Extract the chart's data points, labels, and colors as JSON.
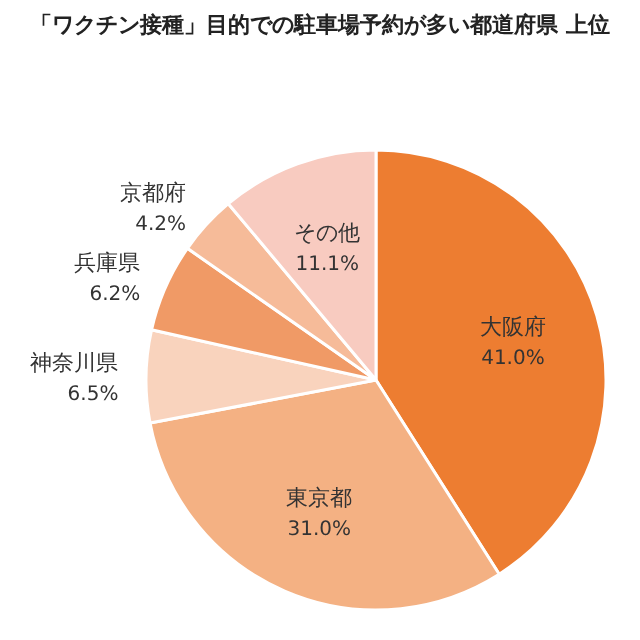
{
  "chart_data": {
    "type": "pie",
    "title": "「ワクチン接種」目的での駐車場予約が多い都道府県 上位",
    "categories": [
      "大阪府",
      "東京都",
      "神奈川県",
      "兵庫県",
      "京都府",
      "その他"
    ],
    "values": [
      41.0,
      31.0,
      6.5,
      6.2,
      4.2,
      11.1
    ],
    "value_labels": [
      "41.0%",
      "31.0%",
      "6.5%",
      "6.2%",
      "4.2%",
      "11.1%"
    ],
    "colors": [
      "#ed7d31",
      "#f4b183",
      "#f9d3bd",
      "#f09a66",
      "#f6bb99",
      "#f8cbc0"
    ]
  }
}
